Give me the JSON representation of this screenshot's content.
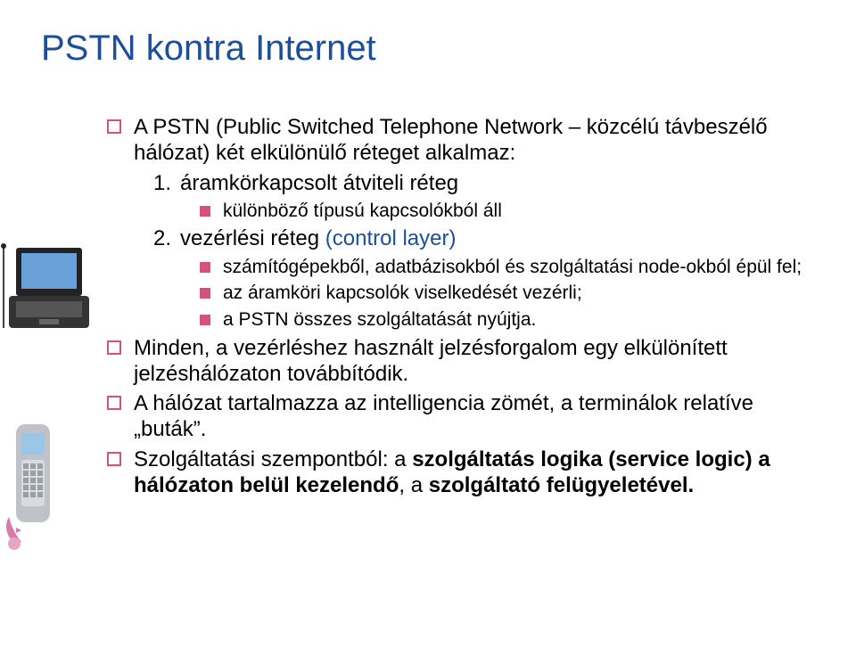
{
  "title": "PSTN kontra Internet",
  "colors": {
    "title": "#1b4e9b",
    "bullet": "#d4537a",
    "text": "#000000",
    "control": "#1b4e9b",
    "background": "#ffffff"
  },
  "fonts": {
    "title_size": 40,
    "body_size": 24,
    "sub_size": 21
  },
  "bullets": [
    {
      "level": 1,
      "marker": "outline",
      "text_html": "A PSTN (Public Switched Telephone Network – közcélú távbeszélő hálózat) két elkülönülő réteget alkalmaz:"
    },
    {
      "level": 2,
      "marker": "number",
      "num": "1.",
      "text_html": "áramkörkapcsolt átviteli réteg"
    },
    {
      "level": 3,
      "marker": "solid",
      "text_html": "különböző típusú kapcsolókból áll"
    },
    {
      "level": 2,
      "marker": "number",
      "num": "2.",
      "text_html": "vezérlési réteg <span class=\"ctrl\">(control layer)</span>"
    },
    {
      "level": 3,
      "marker": "solid",
      "text_html": "számítógépekből, adatbázisokból és szolgáltatási node-okból épül fel;"
    },
    {
      "level": 3,
      "marker": "solid",
      "text_html": "az áramköri kapcsolók viselkedését vezérli;"
    },
    {
      "level": 3,
      "marker": "solid",
      "text_html": "a PSTN összes szolgáltatását nyújtja."
    },
    {
      "level": 1,
      "marker": "outline",
      "text_html": "Minden, a vezérléshez használt jelzésforgalom egy elkülönített jelzéshálózaton továbbítódik."
    },
    {
      "level": 1,
      "marker": "outline",
      "text_html": "A hálózat tartalmazza az intelligencia zömét, a terminálok relatíve „buták”."
    },
    {
      "level": 1,
      "marker": "outline",
      "text_html": "Szolgáltatási szempontból: a <span class=\"bold\">szolgáltatás logika (service logic) a hálózaton belül kezelendő</span>, a <span class=\"bold\">szolgáltató felügyeletével.</span>"
    }
  ]
}
